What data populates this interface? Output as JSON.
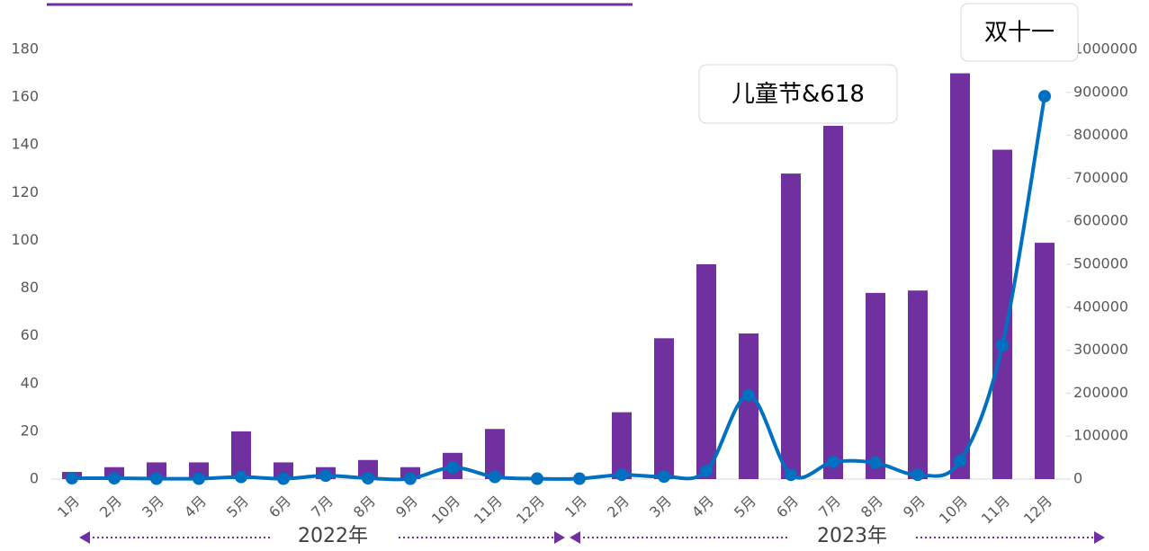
{
  "chart_data": {
    "type": "bar",
    "categories": [
      "1月",
      "2月",
      "3月",
      "4月",
      "5月",
      "6月",
      "7月",
      "8月",
      "9月",
      "10月",
      "11月",
      "12月",
      "1月",
      "2月",
      "3月",
      "4月",
      "5月",
      "6月",
      "7月",
      "8月",
      "9月",
      "10月",
      "11月",
      "12月"
    ],
    "series": [
      {
        "type": "bar",
        "color": "#7030a0",
        "values": [
          3,
          5,
          7,
          7,
          20,
          7,
          5,
          8,
          5,
          11,
          21,
          0,
          0,
          28,
          59,
          90,
          61,
          128,
          148,
          78,
          79,
          170,
          138,
          99
        ]
      },
      {
        "type": "line",
        "axis": "y2",
        "color": "#0070c0",
        "values": [
          2000,
          2000,
          1000,
          1000,
          5000,
          1000,
          8000,
          2000,
          1000,
          27000,
          5000,
          1000,
          1000,
          10000,
          6000,
          19000,
          195000,
          10000,
          40000,
          38000,
          10000,
          42000,
          312000,
          891000
        ]
      }
    ],
    "ylim": [
      0,
      180
    ],
    "yticks": [
      0,
      20,
      40,
      60,
      80,
      100,
      120,
      140,
      160,
      180
    ],
    "y2lim": [
      0,
      1000000
    ],
    "y2ticks": [
      0,
      100000,
      200000,
      300000,
      400000,
      500000,
      600000,
      700000,
      800000,
      900000,
      1000000
    ],
    "groups": [
      "2022年",
      "2023年"
    ],
    "annotations": [
      "儿童节&618",
      "双十一"
    ]
  }
}
